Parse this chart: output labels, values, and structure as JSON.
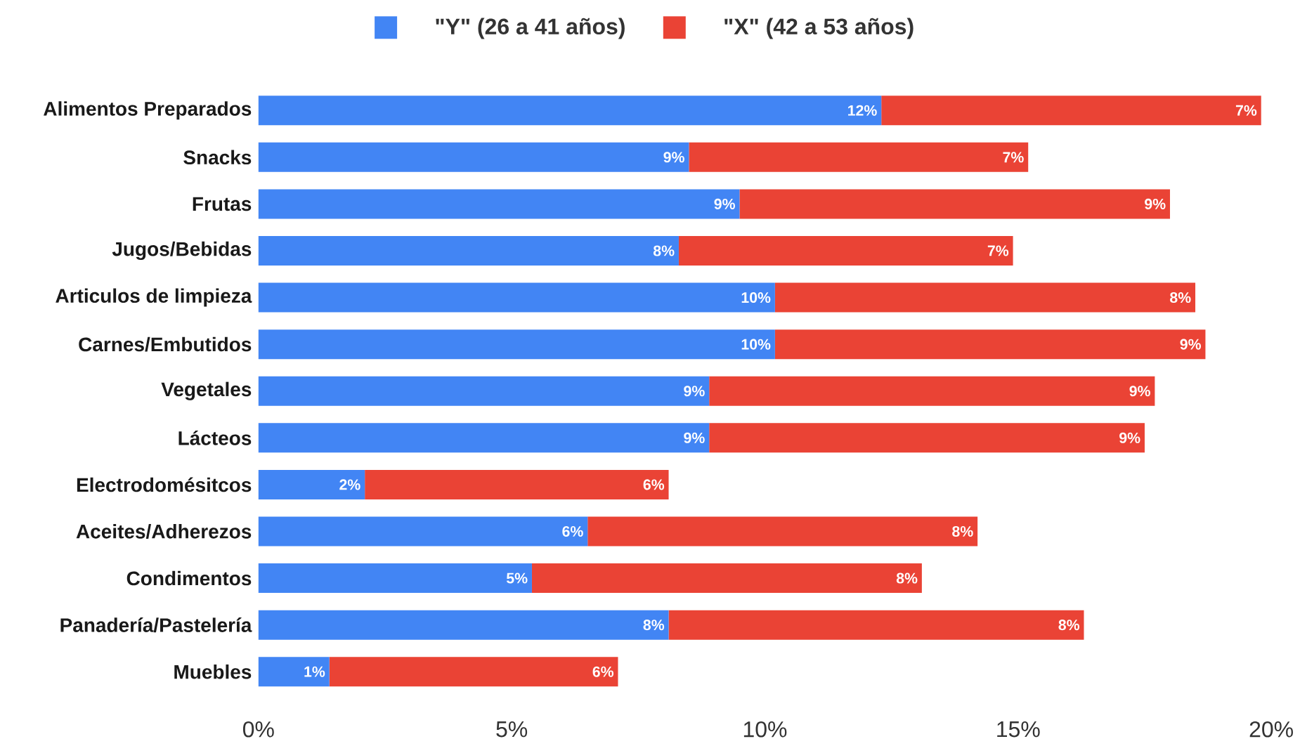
{
  "chart_data": {
    "type": "bar",
    "orientation": "horizontal",
    "stacked": true,
    "legend": "top",
    "categories": [
      "Alimentos Preparados",
      "Snacks",
      "Frutas",
      "Jugos/Bebidas",
      "Articulos de limpieza",
      "Carnes/Embutidos",
      "Vegetales",
      "Lácteos",
      "Electrodomésitcos",
      "Aceites/Adherezos",
      "Condimentos",
      "Panadería/Pastelería",
      "Muebles"
    ],
    "series": [
      {
        "name": "\"Y\" (26 a 41 años)",
        "color": "#4285f4",
        "values": [
          12.3,
          8.5,
          9.5,
          8.3,
          10.2,
          10.2,
          8.9,
          8.9,
          2.1,
          6.5,
          5.4,
          8.1,
          1.4
        ],
        "value_labels": [
          "12%",
          "9%",
          "9%",
          "8%",
          "10%",
          "10%",
          "9%",
          "9%",
          "2%",
          "6%",
          "5%",
          "8%",
          "1%"
        ]
      },
      {
        "name": "\"X\" (42 a 53 años)",
        "color": "#ea4335",
        "values": [
          7.5,
          6.7,
          8.5,
          6.6,
          8.3,
          8.5,
          8.8,
          8.6,
          6.0,
          7.7,
          7.7,
          8.2,
          5.7
        ],
        "value_labels": [
          "7%",
          "7%",
          "9%",
          "7%",
          "8%",
          "9%",
          "9%",
          "9%",
          "6%",
          "8%",
          "8%",
          "8%",
          "6%"
        ]
      }
    ],
    "xlim": [
      0,
      20
    ],
    "xticks": [
      {
        "value": 0,
        "label": "0%"
      },
      {
        "value": 5,
        "label": "5%"
      },
      {
        "value": 10,
        "label": "10%"
      },
      {
        "value": 15,
        "label": "15%"
      },
      {
        "value": 20,
        "label": "20%"
      }
    ]
  }
}
